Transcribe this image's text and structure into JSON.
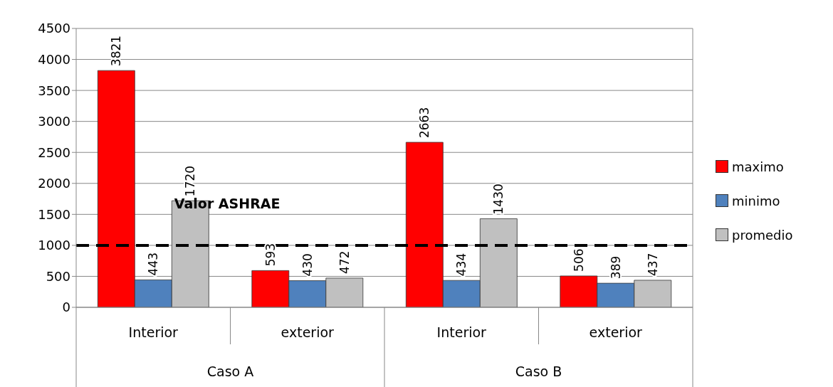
{
  "chart_data": {
    "type": "bar",
    "categories": [
      "Interior",
      "exterior",
      "Interior",
      "exterior"
    ],
    "series": [
      {
        "name": "maximo",
        "color": "#ff0000",
        "values": [
          3821,
          593,
          2663,
          506
        ]
      },
      {
        "name": "minimo",
        "color": "#4f81bd",
        "values": [
          443,
          430,
          434,
          389
        ]
      },
      {
        "name": "promedio",
        "color": "#c0c0c0",
        "values": [
          1720,
          472,
          1430,
          437
        ]
      }
    ],
    "ylim": [
      0,
      4500
    ],
    "yticks": [
      0,
      500,
      1000,
      1500,
      2000,
      2500,
      3000,
      3500,
      4000,
      4500
    ],
    "grid": "y",
    "legend": "right",
    "data_labels": true,
    "ref_lines": [
      {
        "axis": "y",
        "value": 1000,
        "label": "Valor ASHRAE",
        "color": "#000000",
        "line_style": "dashed"
      }
    ],
    "annotations": [
      "Caso A",
      "Caso B"
    ]
  }
}
